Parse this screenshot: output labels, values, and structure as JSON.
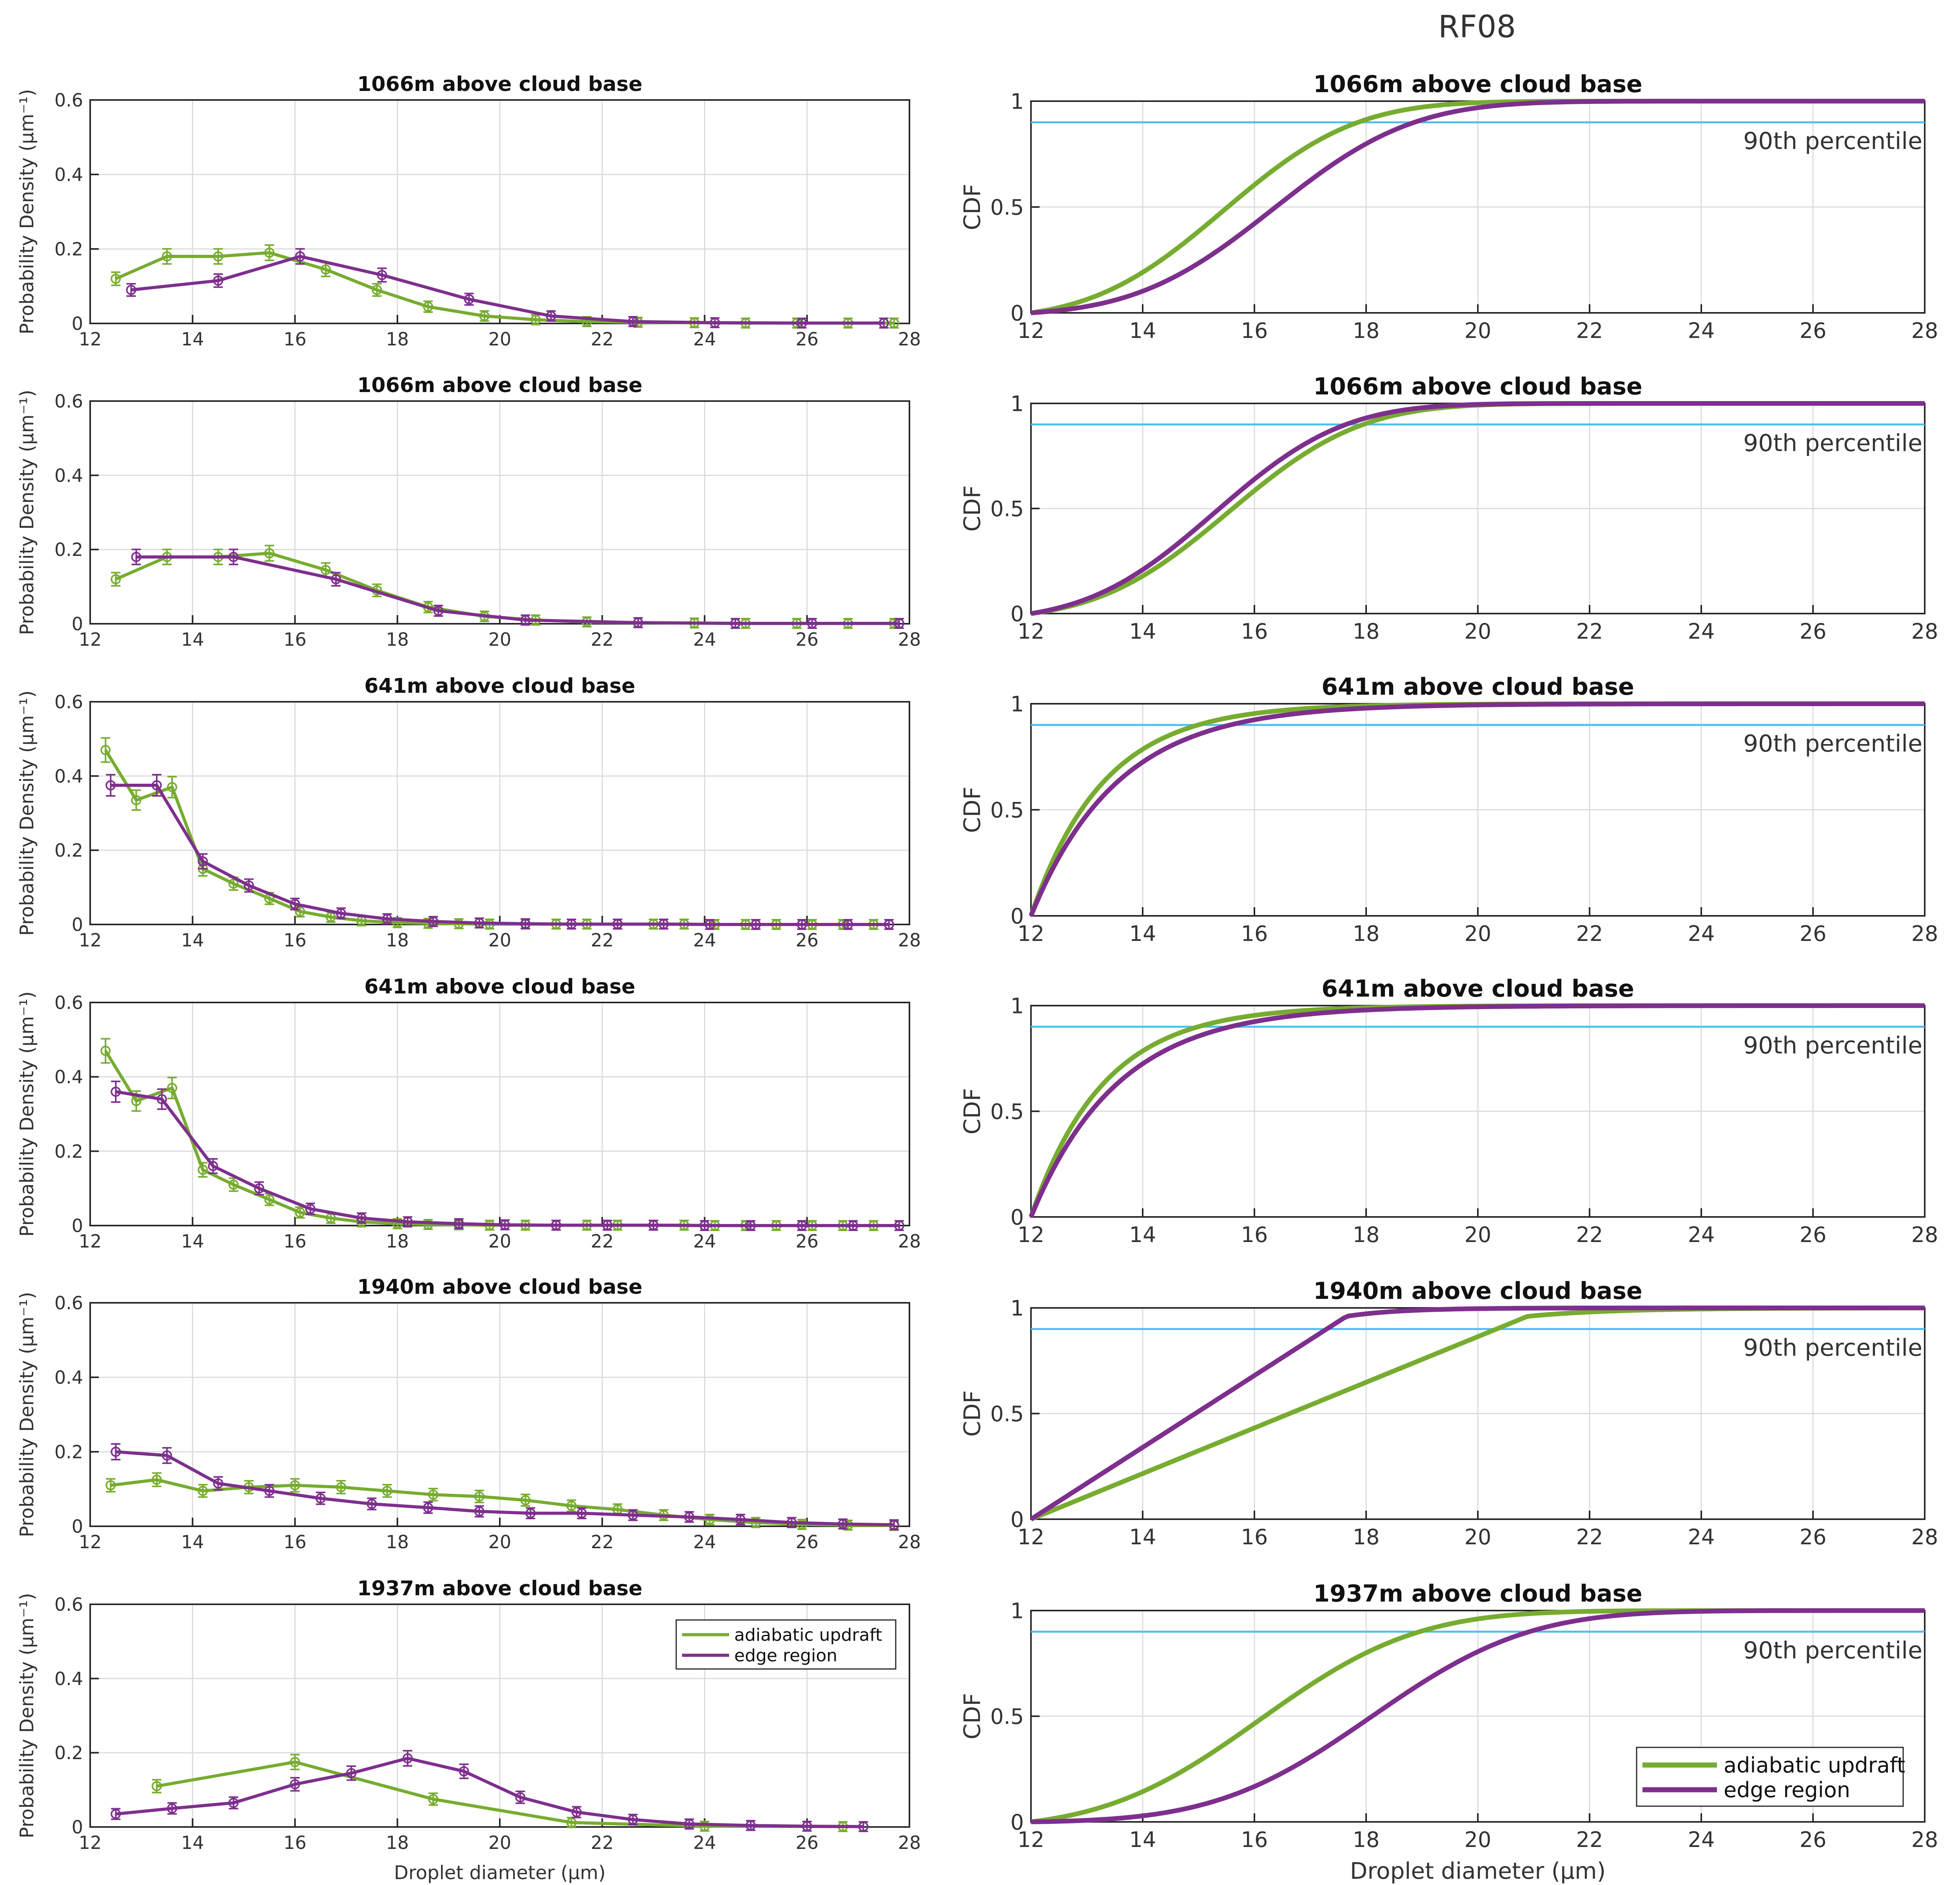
{
  "figure": {
    "suptitle": "RF08",
    "colors": {
      "adiabatic": "#77AC30",
      "edge": "#7E2F8E",
      "percentile_line": "#4DBEEE",
      "grid": "#dcdcdc",
      "axis": "#262626"
    }
  },
  "chart_data": [
    {
      "type": "line",
      "panel": "pdf",
      "row": 1,
      "title": "1066m above cloud base",
      "xlabel": "",
      "ylabel": "Probability Density (μm⁻¹)",
      "xlim": [
        12,
        28
      ],
      "ylim": [
        0,
        0.6
      ],
      "xticks": [
        12,
        14,
        16,
        18,
        20,
        22,
        24,
        26,
        28
      ],
      "yticks": [
        0,
        0.2,
        0.4,
        0.6
      ],
      "grid": true,
      "series": [
        {
          "key": "adiabatic",
          "x": [
            12.5,
            13.5,
            14.5,
            15.5,
            16.6,
            17.6,
            18.6,
            19.7,
            20.7,
            21.7,
            22.7,
            23.8,
            24.8,
            25.8,
            26.8,
            27.7
          ],
          "y": [
            0.12,
            0.18,
            0.18,
            0.19,
            0.145,
            0.09,
            0.045,
            0.02,
            0.01,
            0.005,
            0.003,
            0.002,
            0.001,
            0.001,
            0.001,
            0.001
          ]
        },
        {
          "key": "edge",
          "x": [
            12.8,
            14.5,
            16.1,
            17.7,
            19.4,
            21,
            22.6,
            24.2,
            25.9,
            27.5
          ],
          "y": [
            0.09,
            0.115,
            0.18,
            0.13,
            0.065,
            0.02,
            0.005,
            0.002,
            0.001,
            0.001
          ]
        }
      ]
    },
    {
      "type": "line",
      "panel": "cdf",
      "row": 1,
      "title": "1066m above cloud base",
      "xlabel": "",
      "ylabel": "CDF",
      "xlim": [
        12,
        28
      ],
      "ylim": [
        0,
        1
      ],
      "xticks": [
        12,
        14,
        16,
        18,
        20,
        22,
        24,
        26,
        28
      ],
      "yticks": [
        0,
        0.5,
        1
      ],
      "yticklabels": [
        "0",
        "0.5",
        "1"
      ],
      "grid": true,
      "percentile": {
        "value": 0.9,
        "label": "90th percentile"
      },
      "series": [
        {
          "key": "adiabatic",
          "mu": 15.45,
          "sigma": 1.85
        },
        {
          "key": "edge",
          "mu": 16.35,
          "sigma": 1.95
        }
      ]
    },
    {
      "type": "line",
      "panel": "pdf",
      "row": 2,
      "title": "1066m above cloud base",
      "xlabel": "",
      "ylabel": "Probability Density (μm⁻¹)",
      "xlim": [
        12,
        28
      ],
      "ylim": [
        0,
        0.6
      ],
      "xticks": [
        12,
        14,
        16,
        18,
        20,
        22,
        24,
        26,
        28
      ],
      "yticks": [
        0,
        0.2,
        0.4,
        0.6
      ],
      "grid": true,
      "series": [
        {
          "key": "adiabatic",
          "x": [
            12.5,
            13.5,
            14.5,
            15.5,
            16.6,
            17.6,
            18.6,
            19.7,
            20.7,
            21.7,
            22.7,
            23.8,
            24.8,
            25.8,
            26.8,
            27.7
          ],
          "y": [
            0.12,
            0.18,
            0.18,
            0.19,
            0.145,
            0.09,
            0.045,
            0.02,
            0.01,
            0.005,
            0.003,
            0.002,
            0.001,
            0.001,
            0.001,
            0.001
          ]
        },
        {
          "key": "edge",
          "x": [
            12.9,
            14.8,
            16.8,
            18.8,
            20.5,
            22.7,
            24.6,
            26.1,
            27.8
          ],
          "y": [
            0.18,
            0.18,
            0.12,
            0.035,
            0.01,
            0.003,
            0.001,
            0.001,
            0.001
          ]
        }
      ]
    },
    {
      "type": "line",
      "panel": "cdf",
      "row": 2,
      "title": "1066m above cloud base",
      "xlabel": "",
      "ylabel": "CDF",
      "xlim": [
        12,
        28
      ],
      "ylim": [
        0,
        1
      ],
      "xticks": [
        12,
        14,
        16,
        18,
        20,
        22,
        24,
        26,
        28
      ],
      "yticks": [
        0,
        0.5,
        1
      ],
      "yticklabels": [
        "0",
        "0.5",
        "1"
      ],
      "grid": true,
      "percentile": {
        "value": 0.9,
        "label": "90th percentile"
      },
      "series": [
        {
          "key": "adiabatic",
          "mu": 15.55,
          "sigma": 1.85
        },
        {
          "key": "edge",
          "mu": 15.3,
          "sigma": 1.8
        }
      ]
    },
    {
      "type": "line",
      "panel": "pdf",
      "row": 3,
      "title": "641m above cloud base",
      "xlabel": "",
      "ylabel": "Probability Density (μm⁻¹)",
      "xlim": [
        12,
        28
      ],
      "ylim": [
        0,
        0.6
      ],
      "xticks": [
        12,
        14,
        16,
        18,
        20,
        22,
        24,
        26,
        28
      ],
      "yticks": [
        0,
        0.2,
        0.4,
        0.6
      ],
      "grid": true,
      "series": [
        {
          "key": "adiabatic",
          "x": [
            12.3,
            12.9,
            13.6,
            14.2,
            14.8,
            15.5,
            16.1,
            16.7,
            17.3,
            18,
            18.6,
            19.2,
            19.8,
            20.5,
            21.1,
            21.7,
            22.3,
            23,
            23.6,
            24.2,
            24.8,
            25.4,
            26.1,
            26.7,
            27.3
          ],
          "y": [
            0.47,
            0.335,
            0.37,
            0.15,
            0.11,
            0.07,
            0.035,
            0.02,
            0.01,
            0.005,
            0.003,
            0.002,
            0.001,
            0.001,
            0.001,
            0.001,
            0.001,
            0.001,
            0.001,
            0,
            0,
            0,
            0,
            0,
            0
          ]
        },
        {
          "key": "edge",
          "x": [
            12.4,
            13.3,
            14.2,
            15.1,
            16,
            16.9,
            17.8,
            18.7,
            19.6,
            20.5,
            21.4,
            22.3,
            23.2,
            24.1,
            25,
            25.9,
            26.8,
            27.6
          ],
          "y": [
            0.375,
            0.375,
            0.17,
            0.105,
            0.055,
            0.03,
            0.015,
            0.008,
            0.004,
            0.002,
            0.001,
            0.001,
            0.001,
            0,
            0,
            0,
            0,
            0
          ]
        }
      ]
    },
    {
      "type": "line",
      "panel": "cdf",
      "row": 3,
      "title": "641m above cloud base",
      "xlabel": "",
      "ylabel": "CDF",
      "xlim": [
        12,
        28
      ],
      "ylim": [
        0,
        1
      ],
      "xticks": [
        12,
        14,
        16,
        18,
        20,
        22,
        24,
        26,
        28
      ],
      "yticks": [
        0,
        0.5,
        1
      ],
      "yticklabels": [
        "0",
        "0.5",
        "1"
      ],
      "grid": true,
      "percentile": {
        "value": 0.9,
        "label": "90th percentile"
      },
      "series": [
        {
          "key": "adiabatic",
          "exp_scale": 1.3
        },
        {
          "key": "edge",
          "exp_scale": 1.55
        }
      ]
    },
    {
      "type": "line",
      "panel": "pdf",
      "row": 4,
      "title": "641m above cloud base",
      "xlabel": "",
      "ylabel": "Probability Density (μm⁻¹)",
      "xlim": [
        12,
        28
      ],
      "ylim": [
        0,
        0.6
      ],
      "xticks": [
        12,
        14,
        16,
        18,
        20,
        22,
        24,
        26,
        28
      ],
      "yticks": [
        0,
        0.2,
        0.4,
        0.6
      ],
      "grid": true,
      "series": [
        {
          "key": "adiabatic",
          "x": [
            12.3,
            12.9,
            13.6,
            14.2,
            14.8,
            15.5,
            16.1,
            16.7,
            17.3,
            18,
            18.6,
            19.2,
            19.8,
            20.5,
            21.1,
            21.7,
            22.3,
            23,
            23.6,
            24.2,
            24.8,
            25.4,
            26.1,
            26.7,
            27.3
          ],
          "y": [
            0.47,
            0.335,
            0.37,
            0.15,
            0.11,
            0.07,
            0.035,
            0.02,
            0.01,
            0.005,
            0.003,
            0.002,
            0.001,
            0.001,
            0.001,
            0.001,
            0.001,
            0.001,
            0.001,
            0,
            0,
            0,
            0,
            0,
            0
          ]
        },
        {
          "key": "edge",
          "x": [
            12.5,
            13.4,
            14.4,
            15.3,
            16.3,
            17.3,
            18.2,
            19.2,
            20.1,
            21.1,
            22.1,
            23,
            24,
            24.9,
            25.9,
            26.9,
            27.8
          ],
          "y": [
            0.36,
            0.34,
            0.16,
            0.1,
            0.045,
            0.02,
            0.01,
            0.005,
            0.002,
            0.001,
            0.001,
            0.001,
            0,
            0,
            0,
            0,
            0
          ]
        }
      ]
    },
    {
      "type": "line",
      "panel": "cdf",
      "row": 4,
      "title": "641m above cloud base",
      "xlabel": "",
      "ylabel": "CDF",
      "xlim": [
        12,
        28
      ],
      "ylim": [
        0,
        1
      ],
      "xticks": [
        12,
        14,
        16,
        18,
        20,
        22,
        24,
        26,
        28
      ],
      "yticks": [
        0,
        0.5,
        1
      ],
      "yticklabels": [
        "0",
        "0.5",
        "1"
      ],
      "grid": true,
      "percentile": {
        "value": 0.9,
        "label": "90th percentile"
      },
      "series": [
        {
          "key": "adiabatic",
          "exp_scale": 1.3
        },
        {
          "key": "edge",
          "exp_scale": 1.55
        }
      ]
    },
    {
      "type": "line",
      "panel": "pdf",
      "row": 5,
      "title": "1940m above cloud base",
      "xlabel": "",
      "ylabel": "Probability Density (μm⁻¹)",
      "xlim": [
        12,
        28
      ],
      "ylim": [
        0,
        0.6
      ],
      "xticks": [
        12,
        14,
        16,
        18,
        20,
        22,
        24,
        26,
        28
      ],
      "yticks": [
        0,
        0.2,
        0.4,
        0.6
      ],
      "grid": true,
      "series": [
        {
          "key": "adiabatic",
          "x": [
            12.4,
            13.3,
            14.2,
            15.1,
            16,
            16.9,
            17.8,
            18.7,
            19.6,
            20.5,
            21.4,
            22.3,
            23.2,
            24.1,
            25,
            25.9,
            26.8,
            27.7
          ],
          "y": [
            0.11,
            0.125,
            0.095,
            0.105,
            0.11,
            0.105,
            0.095,
            0.085,
            0.08,
            0.07,
            0.055,
            0.045,
            0.03,
            0.018,
            0.01,
            0.005,
            0.003,
            0.002
          ]
        },
        {
          "key": "edge",
          "x": [
            12.5,
            13.5,
            14.5,
            15.5,
            16.5,
            17.5,
            18.6,
            19.6,
            20.6,
            21.6,
            22.6,
            23.7,
            24.7,
            25.7,
            26.7,
            27.7
          ],
          "y": [
            0.2,
            0.19,
            0.115,
            0.095,
            0.075,
            0.06,
            0.05,
            0.04,
            0.035,
            0.035,
            0.03,
            0.025,
            0.018,
            0.01,
            0.006,
            0.004
          ]
        }
      ]
    },
    {
      "type": "line",
      "panel": "cdf",
      "row": 5,
      "title": "1940m above cloud base",
      "xlabel": "",
      "ylabel": "CDF",
      "xlim": [
        12,
        28
      ],
      "ylim": [
        0,
        1
      ],
      "xticks": [
        12,
        14,
        16,
        18,
        20,
        22,
        24,
        26,
        28
      ],
      "yticks": [
        0,
        0.5,
        1
      ],
      "yticklabels": [
        "0",
        "0.5",
        "1"
      ],
      "grid": true,
      "percentile": {
        "value": 0.9,
        "label": "90th percentile"
      },
      "series": [
        {
          "key": "adiabatic",
          "lin_rate": 0.108
        },
        {
          "key": "edge",
          "lin_rate": 0.17
        }
      ]
    },
    {
      "type": "line",
      "panel": "pdf",
      "row": 6,
      "title": "1937m above cloud base",
      "xlabel": "Droplet diameter (μm)",
      "ylabel": "Probability Density (μm⁻¹)",
      "xlim": [
        12,
        28
      ],
      "ylim": [
        0,
        0.6
      ],
      "xticks": [
        12,
        14,
        16,
        18,
        20,
        22,
        24,
        26,
        28
      ],
      "yticks": [
        0,
        0.2,
        0.4,
        0.6
      ],
      "grid": true,
      "legend": {
        "loc": "top-right",
        "entries": [
          "adiabatic updraft",
          "edge region"
        ]
      },
      "series": [
        {
          "key": "adiabatic",
          "name": "adiabatic updraft",
          "x": [
            13.3,
            16,
            18.7,
            21.4,
            24,
            26.7
          ],
          "y": [
            0.11,
            0.175,
            0.075,
            0.012,
            0.002,
            0.001
          ]
        },
        {
          "key": "edge",
          "name": "edge region",
          "x": [
            12.5,
            13.6,
            14.8,
            16,
            17.1,
            18.2,
            19.3,
            20.4,
            21.5,
            22.6,
            23.7,
            24.9,
            26,
            27.1
          ],
          "y": [
            0.035,
            0.05,
            0.065,
            0.115,
            0.145,
            0.185,
            0.15,
            0.08,
            0.04,
            0.02,
            0.008,
            0.004,
            0.002,
            0.001
          ]
        }
      ]
    },
    {
      "type": "line",
      "panel": "cdf",
      "row": 6,
      "title": "1937m above cloud base",
      "xlabel": "Droplet diameter (μm)",
      "ylabel": "CDF",
      "xlim": [
        12,
        28
      ],
      "ylim": [
        0,
        1
      ],
      "xticks": [
        12,
        14,
        16,
        18,
        20,
        22,
        24,
        26,
        28
      ],
      "yticks": [
        0,
        0.5,
        1
      ],
      "yticklabels": [
        "0",
        "0.5",
        "1"
      ],
      "grid": true,
      "percentile": {
        "value": 0.9,
        "label": "90th percentile"
      },
      "legend": {
        "loc": "bottom-right",
        "entries": [
          "adiabatic updraft",
          "edge region"
        ]
      },
      "series": [
        {
          "key": "adiabatic",
          "name": "adiabatic updraft",
          "mu": 16.1,
          "sigma": 2.2
        },
        {
          "key": "edge",
          "name": "edge region",
          "mu": 18.1,
          "sigma": 2.2
        }
      ]
    }
  ]
}
